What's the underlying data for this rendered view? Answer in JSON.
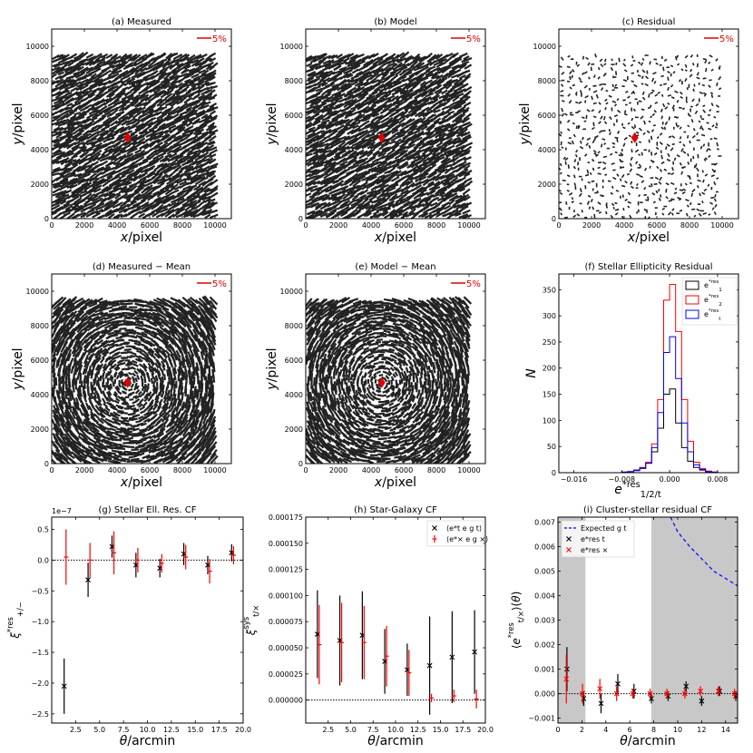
{
  "chart_data": [
    {
      "id": "a",
      "type": "quiver",
      "title": "(a) Measured",
      "pattern": "aligned",
      "density": "dense",
      "xlabel": "x/pixel",
      "ylabel": "y/pixel",
      "xlim": [
        0,
        11000
      ],
      "ylim": [
        0,
        11000
      ],
      "xticks": [
        0,
        2000,
        4000,
        6000,
        8000,
        10000
      ],
      "yticks": [
        0,
        2000,
        4000,
        6000,
        8000,
        10000
      ],
      "scale_label": "5%",
      "center_marker": {
        "x": 4650,
        "y": 4700,
        "color": "#e00000"
      }
    },
    {
      "id": "b",
      "type": "quiver",
      "title": "(b) Model",
      "pattern": "aligned",
      "density": "dense",
      "xlabel": "x/pixel",
      "ylabel": "y/pixel",
      "xlim": [
        0,
        11000
      ],
      "ylim": [
        0,
        11000
      ],
      "xticks": [
        0,
        2000,
        4000,
        6000,
        8000,
        10000
      ],
      "yticks": [
        0,
        2000,
        4000,
        6000,
        8000,
        10000
      ],
      "scale_label": "5%",
      "center_marker": {
        "x": 4650,
        "y": 4700,
        "color": "#e00000"
      }
    },
    {
      "id": "c",
      "type": "quiver",
      "title": "(c) Residual",
      "pattern": "random",
      "density": "sparse",
      "xlabel": "x/pixel",
      "ylabel": "y/pixel",
      "xlim": [
        0,
        11000
      ],
      "ylim": [
        0,
        11000
      ],
      "xticks": [
        0,
        2000,
        4000,
        6000,
        8000,
        10000
      ],
      "yticks": [
        0,
        2000,
        4000,
        6000,
        8000,
        10000
      ],
      "scale_label": "5%",
      "center_marker": {
        "x": 4650,
        "y": 4700,
        "color": "#e00000"
      }
    },
    {
      "id": "d",
      "type": "quiver",
      "title": "(d) Measured − Mean",
      "pattern": "tangential",
      "density": "dense",
      "xlabel": "x/pixel",
      "ylabel": "y/pixel",
      "xlim": [
        0,
        11000
      ],
      "ylim": [
        0,
        11000
      ],
      "xticks": [
        0,
        2000,
        4000,
        6000,
        8000,
        10000
      ],
      "yticks": [
        0,
        2000,
        4000,
        6000,
        8000,
        10000
      ],
      "scale_label": "5%",
      "center_marker": {
        "x": 4650,
        "y": 4700,
        "color": "#e00000"
      }
    },
    {
      "id": "e",
      "type": "quiver",
      "title": "(e) Model − Mean",
      "pattern": "tangential",
      "density": "dense",
      "xlabel": "x/pixel",
      "ylabel": "y/pixel",
      "xlim": [
        0,
        11000
      ],
      "ylim": [
        0,
        11000
      ],
      "xticks": [
        0,
        2000,
        4000,
        6000,
        8000,
        10000
      ],
      "yticks": [
        0,
        2000,
        4000,
        6000,
        8000,
        10000
      ],
      "scale_label": "5%",
      "center_marker": {
        "x": 4650,
        "y": 4700,
        "color": "#e00000"
      }
    },
    {
      "id": "f",
      "type": "histogram",
      "title": "(f) Stellar Ellipticity Residual",
      "xlabel": "e*res 1/2/t",
      "ylabel": "N",
      "xlim": [
        -0.0185,
        0.0115
      ],
      "ylim": [
        0,
        380
      ],
      "xticks": [
        -0.016,
        -0.008,
        0.0,
        0.008
      ],
      "xtick_labels": [
        "−0.016",
        "−0.008",
        "0.000",
        "0.008"
      ],
      "yticks": [
        0,
        50,
        100,
        150,
        200,
        250,
        300,
        350
      ],
      "bins": [
        -0.009,
        -0.008,
        -0.007,
        -0.006,
        -0.005,
        -0.004,
        -0.003,
        -0.002,
        -0.001,
        0.0,
        0.001,
        0.002,
        0.003,
        0.004,
        0.005,
        0.006,
        0.007,
        0.008,
        0.009
      ],
      "series": [
        {
          "name": "e1*res",
          "color": "#000000",
          "values": [
            0,
            1,
            2,
            4,
            8,
            18,
            40,
            85,
            150,
            160,
            95,
            48,
            22,
            10,
            5,
            2,
            1,
            0
          ]
        },
        {
          "name": "e2*res",
          "color": "#ff0000",
          "values": [
            0,
            1,
            2,
            5,
            10,
            20,
            55,
            140,
            330,
            360,
            270,
            140,
            60,
            20,
            8,
            3,
            1,
            0
          ]
        },
        {
          "name": "et*res",
          "color": "#0000ff",
          "values": [
            0,
            1,
            2,
            5,
            9,
            18,
            48,
            115,
            230,
            260,
            180,
            95,
            40,
            15,
            6,
            2,
            1,
            0
          ]
        }
      ]
    },
    {
      "id": "g",
      "type": "errorbar",
      "title": "(g) Stellar Ell. Res. CF",
      "xlabel": "θ/arcmin",
      "ylabel": "ξ*res +/−",
      "offset_label": "1e−7",
      "xlim": [
        0,
        20
      ],
      "ylim": [
        -2.65,
        0.7
      ],
      "xticks": [
        2.5,
        5.0,
        7.5,
        10.0,
        12.5,
        15.0,
        17.5,
        20.0
      ],
      "xtick_labels": [
        "2.5",
        "5.0",
        "7.5",
        "10.0",
        "12.5",
        "15.0",
        "17.5",
        "20.0"
      ],
      "yticks": [
        -2.5,
        -2.0,
        -1.5,
        -1.0,
        -0.5,
        0.0,
        0.5
      ],
      "ytick_labels": [
        "−2.5",
        "−2.0",
        "−1.5",
        "−1.0",
        "−0.5",
        "0.0",
        "0.5"
      ],
      "hline": 0,
      "series": [
        {
          "name": "xi+",
          "color": "#000000",
          "marker": "x",
          "x": [
            1.3,
            3.8,
            6.3,
            8.8,
            11.3,
            13.8,
            16.3,
            18.8
          ],
          "y": [
            -2.05,
            -0.32,
            0.22,
            -0.08,
            -0.13,
            0.1,
            -0.08,
            0.12
          ],
          "err": [
            0.45,
            0.28,
            0.18,
            0.2,
            0.15,
            0.18,
            0.15,
            0.14
          ]
        },
        {
          "name": "xi-",
          "color": "#ff0000",
          "marker": "|",
          "x": [
            1.5,
            4.0,
            6.5,
            9.0,
            11.5,
            14.0,
            16.5,
            19.0
          ],
          "y": [
            0.05,
            0.0,
            0.12,
            0.0,
            -0.05,
            0.05,
            -0.18,
            0.08
          ],
          "err": [
            0.45,
            0.28,
            0.35,
            0.2,
            0.15,
            0.2,
            0.2,
            0.15
          ]
        }
      ]
    },
    {
      "id": "h",
      "type": "errorbar",
      "title": "(h) Star-Galaxy CF",
      "xlabel": "θ/arcmin",
      "ylabel": "ξsys t/×",
      "xlim": [
        0,
        20
      ],
      "ylim": [
        -2.2e-05,
        0.000175
      ],
      "xticks": [
        2.5,
        5.0,
        7.5,
        10.0,
        12.5,
        15.0,
        17.5,
        20.0
      ],
      "xtick_labels": [
        "2.5",
        "5.0",
        "7.5",
        "10.0",
        "12.5",
        "15.0",
        "17.5",
        "20.0"
      ],
      "yticks": [
        0,
        2.5e-05,
        5e-05,
        7.5e-05,
        0.0001,
        0.000125,
        0.00015,
        0.000175
      ],
      "ytick_labels": [
        "0.000000",
        "0.000025",
        "0.000050",
        "0.000075",
        "0.000100",
        "0.000125",
        "0.000150",
        "0.000175"
      ],
      "hline": 0,
      "legend": [
        {
          "label": "⟨e*t e g t⟩",
          "color": "#000000",
          "marker": "x"
        },
        {
          "label": "⟨e*× e g ×⟩",
          "color": "#ff0000",
          "marker": "|"
        }
      ],
      "series": [
        {
          "name": "t",
          "color": "#000000",
          "marker": "x",
          "x": [
            1.3,
            3.8,
            6.3,
            8.8,
            11.3,
            13.8,
            16.3,
            18.8
          ],
          "y": [
            6.3e-05,
            5.7e-05,
            6.2e-05,
            3.7e-05,
            2.9e-05,
            3.3e-05,
            4.1e-05,
            4.6e-05
          ],
          "err": [
            4.2e-05,
            4.3e-05,
            4.2e-05,
            3.1e-05,
            2.5e-05,
            4.7e-05,
            4.4e-05,
            4e-05
          ]
        },
        {
          "name": "x",
          "color": "#ff0000",
          "marker": "|",
          "x": [
            1.5,
            4.0,
            6.5,
            9.0,
            11.5,
            14.0,
            16.5,
            19.0
          ],
          "y": [
            5.3e-05,
            5.5e-05,
            5.5e-05,
            4.2e-05,
            2.6e-05,
            2e-06,
            4e-06,
            1e-06
          ],
          "err": [
            3.8e-05,
            3.8e-05,
            3.5e-05,
            2.9e-05,
            2.2e-05,
            4e-06,
            6e-06,
            9e-06
          ]
        }
      ]
    },
    {
      "id": "i",
      "type": "errorbar",
      "title": "(i) Cluster-stellar residual CF",
      "xlabel": "θ/arcmin",
      "ylabel": "⟨e*res t/× ⟩(θ)",
      "xlim": [
        0,
        15
      ],
      "ylim": [
        -0.0012,
        0.0072
      ],
      "xticks": [
        0,
        2,
        4,
        6,
        8,
        10,
        12,
        14
      ],
      "xtick_labels": [
        "0",
        "2",
        "4",
        "6",
        "8",
        "10",
        "12",
        "14"
      ],
      "yticks": [
        -0.001,
        0,
        0.001,
        0.002,
        0.003,
        0.004,
        0.005,
        0.006,
        0.007
      ],
      "ytick_labels": [
        "−0.001",
        "0.000",
        "0.001",
        "0.002",
        "0.003",
        "0.004",
        "0.005",
        "0.006",
        "0.007"
      ],
      "hline": 0,
      "shaded": [
        [
          0,
          2.3
        ],
        [
          7.8,
          15
        ]
      ],
      "legend": [
        {
          "label": "Expected g t",
          "color": "#0000ff",
          "marker": "dash"
        },
        {
          "label": "e*res t",
          "color": "#000000",
          "marker": "x"
        },
        {
          "label": "e*res ×",
          "color": "#ff0000",
          "marker": "x"
        }
      ],
      "expected_curve": {
        "name": "Expected g_t",
        "color": "#0000ff",
        "x": [
          9.4,
          10.0,
          11.0,
          12.0,
          13.0,
          14.0,
          15.0
        ],
        "y": [
          0.0072,
          0.0066,
          0.006,
          0.0055,
          0.005,
          0.0047,
          0.0044
        ]
      },
      "series": [
        {
          "name": "et",
          "color": "#000000",
          "marker": "x",
          "x": [
            0.75,
            2.15,
            3.6,
            5.0,
            6.35,
            7.8,
            9.2,
            10.7,
            12.0,
            13.5,
            14.85
          ],
          "y": [
            0.001,
            -0.0002,
            -0.0004,
            0.0004,
            0.0001,
            -0.0002,
            -0.0001,
            0.0003,
            -0.0003,
            0.0001,
            -0.0001
          ],
          "err": [
            0.0009,
            0.0003,
            0.0004,
            0.0004,
            0.0003,
            0.0002,
            0.0002,
            0.0002,
            0.0002,
            0.0002,
            0.0002
          ]
        },
        {
          "name": "ex",
          "color": "#ff0000",
          "marker": "x",
          "x": [
            0.7,
            2.05,
            3.5,
            4.9,
            6.25,
            7.7,
            9.1,
            10.6,
            11.9,
            13.4,
            14.75
          ],
          "y": [
            0.0006,
            0.0,
            0.0002,
            0.0,
            0.0,
            0.0,
            0.0,
            0.0,
            0.0001,
            0.0001,
            0.0
          ],
          "err": [
            0.001,
            0.0004,
            0.0004,
            0.0003,
            0.0002,
            0.0002,
            0.0002,
            0.0002,
            0.0002,
            0.0002,
            0.0002
          ]
        }
      ]
    }
  ]
}
